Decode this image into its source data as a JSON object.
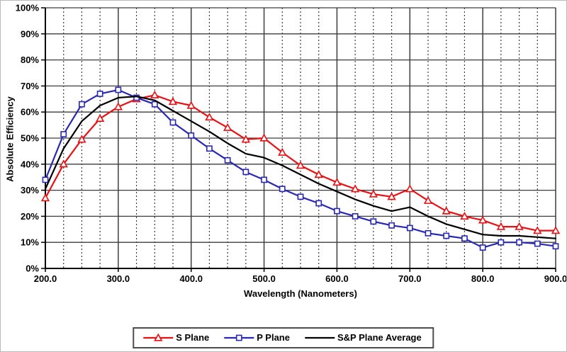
{
  "figure": {
    "border_color": "#b9b9b9",
    "background": "#ffffff"
  },
  "chart_data": {
    "type": "line",
    "title": "",
    "xlabel": "Wavelength (Nanometers)",
    "ylabel": "Absolute Efficiency",
    "xlim": [
      200,
      900
    ],
    "ylim": [
      0,
      100
    ],
    "x_major_ticks": [
      200,
      300,
      400,
      500,
      600,
      700,
      800,
      900
    ],
    "x_tick_labels": [
      "200.0",
      "300.0",
      "400.0",
      "500.0",
      "600.0",
      "700.0",
      "800.0",
      "900.0"
    ],
    "x_minor_step": 25,
    "y_major_step": 10,
    "y_tick_labels": [
      "0%",
      "10%",
      "20%",
      "30%",
      "40%",
      "50%",
      "60%",
      "70%",
      "80%",
      "90%",
      "100%"
    ],
    "grid": true,
    "grid_color": "#3d3d3d",
    "axis_color": "#000000",
    "legend_position": "bottom-center",
    "x": [
      200,
      225,
      250,
      275,
      300,
      325,
      350,
      375,
      400,
      425,
      450,
      475,
      500,
      525,
      550,
      575,
      600,
      625,
      650,
      675,
      700,
      725,
      750,
      775,
      800,
      825,
      850,
      875,
      900
    ],
    "series": [
      {
        "name": "S Plane",
        "color": "#e81014",
        "marker": "triangle",
        "values": [
          27,
          40,
          49.5,
          57.5,
          62,
          65,
          66.5,
          64,
          62.5,
          58,
          54,
          49.5,
          50,
          44.5,
          39.5,
          36,
          33,
          30.5,
          28.5,
          27.5,
          30.5,
          26,
          22,
          20,
          18.5,
          16,
          16,
          14.5,
          14.5
        ]
      },
      {
        "name": "P Plane",
        "color": "#2828b4",
        "marker": "square",
        "values": [
          34,
          51.5,
          63,
          67,
          68.5,
          65.5,
          63,
          56,
          51,
          46,
          41.5,
          37,
          34,
          30.5,
          27.5,
          25,
          22,
          20,
          18,
          16.5,
          15.5,
          13.5,
          12.5,
          11.5,
          8,
          10,
          10,
          9.5,
          8.5
        ]
      },
      {
        "name": "S&P Plane Average",
        "color": "#000000",
        "marker": "none",
        "values": [
          30.5,
          46,
          56.5,
          62.5,
          65.5,
          66,
          64.5,
          60.5,
          56.5,
          52.5,
          48,
          44,
          42.5,
          39.5,
          36,
          32.5,
          29.5,
          26.5,
          24,
          22,
          23.5,
          20,
          17,
          15,
          13,
          12.5,
          12.5,
          12,
          11.5
        ]
      }
    ]
  }
}
